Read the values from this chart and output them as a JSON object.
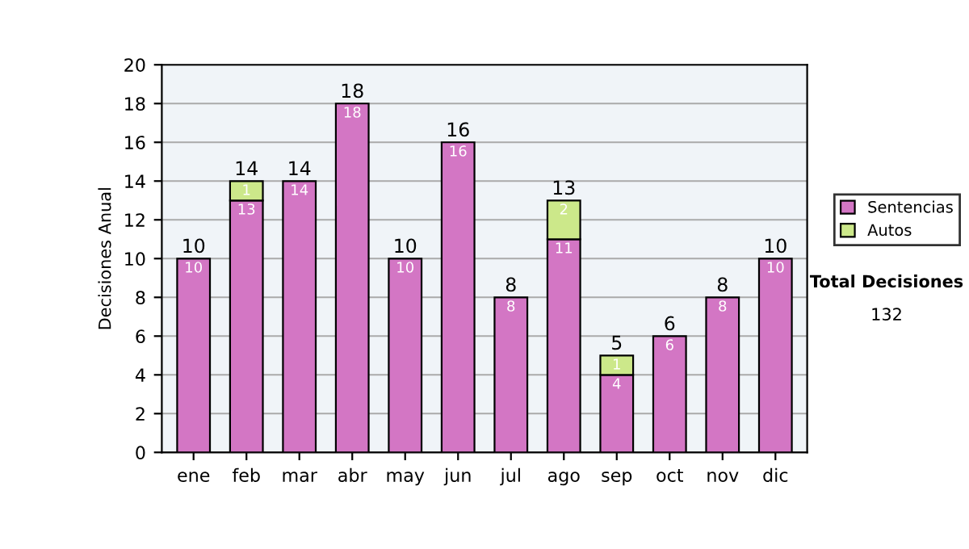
{
  "chart_data": {
    "type": "bar",
    "stacked": true,
    "ylabel": "Decisiones Anual",
    "categories": [
      "ene",
      "feb",
      "mar",
      "abr",
      "may",
      "jun",
      "jul",
      "ago",
      "sep",
      "oct",
      "nov",
      "dic"
    ],
    "series": [
      {
        "name": "Sentencias",
        "color": "#d376c4",
        "values": [
          10,
          13,
          14,
          18,
          10,
          16,
          8,
          11,
          4,
          6,
          8,
          10
        ],
        "value_labels": [
          "10",
          "13",
          "14",
          "18",
          "10",
          "16",
          "8",
          "11",
          "4",
          "6",
          "8",
          "10"
        ]
      },
      {
        "name": "Autos",
        "color": "#cce88a",
        "values": [
          null,
          1,
          null,
          null,
          null,
          null,
          null,
          2,
          1,
          null,
          null,
          null
        ],
        "value_labels": [
          null,
          "1",
          null,
          null,
          null,
          null,
          null,
          "2",
          "1",
          null,
          null,
          null
        ]
      }
    ],
    "totals": [
      "10",
      "14",
      "14",
      "18",
      "10",
      "16",
      "8",
      "13",
      "5",
      "6",
      "8",
      "10"
    ],
    "ylim": [
      0,
      20
    ],
    "yticks": [
      0,
      2,
      4,
      6,
      8,
      10,
      12,
      14,
      16,
      18,
      20
    ],
    "grid": "y",
    "legend": "right",
    "annotations": [
      "Total Decisiones",
      "132"
    ]
  }
}
